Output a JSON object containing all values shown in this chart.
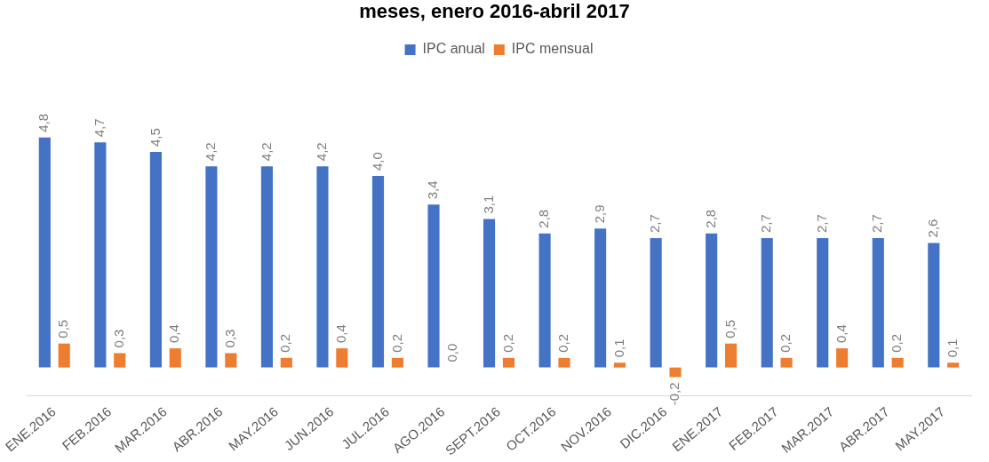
{
  "chart_data": {
    "type": "bar",
    "title": "meses, enero 2016-abril 2017",
    "categories": [
      "ENE.2016",
      "FEB.2016",
      "MAR.2016",
      "ABR.2016",
      "MAY.2016",
      "JUN.2016",
      "JUL.2016",
      "AGO.2016",
      "SEPT.2016",
      "OCT.2016",
      "NOV.2016",
      "DIC.2016",
      "ENE.2017",
      "FEB.2017",
      "MAR.2017",
      "ABR.2017",
      "MAY.2017"
    ],
    "series": [
      {
        "name": "IPC anual",
        "color": "#4472c4",
        "values": [
          4.8,
          4.7,
          4.5,
          4.2,
          4.2,
          4.2,
          4.0,
          3.4,
          3.1,
          2.8,
          2.9,
          2.7,
          2.8,
          2.7,
          2.7,
          2.7,
          2.6
        ],
        "value_labels": [
          "4,8",
          "4,7",
          "4,5",
          "4,2",
          "4,2",
          "4,2",
          "4,0",
          "3,4",
          "3,1",
          "2,8",
          "2,9",
          "2,7",
          "2,8",
          "2,7",
          "2,7",
          "2,7",
          "2,6"
        ]
      },
      {
        "name": "IPC mensual",
        "color": "#ed7d31",
        "values": [
          0.5,
          0.3,
          0.4,
          0.3,
          0.2,
          0.4,
          0.2,
          0.0,
          0.2,
          0.2,
          0.1,
          -0.2,
          0.5,
          0.2,
          0.4,
          0.2,
          0.1
        ],
        "value_labels": [
          "0,5",
          "0,3",
          "0,4",
          "0,3",
          "0,2",
          "0,4",
          "0,2",
          "0,0",
          "0,2",
          "0,2",
          "0,1",
          "-0,2",
          "0,5",
          "0,2",
          "0,4",
          "0,2",
          "0,1"
        ]
      }
    ],
    "legend": "top",
    "grid": false
  }
}
